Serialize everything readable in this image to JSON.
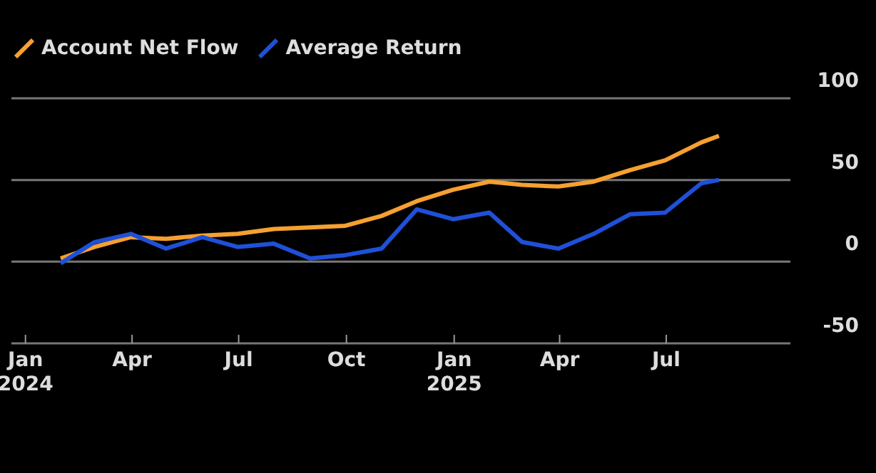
{
  "chart_data": {
    "type": "line",
    "x": [
      "2024-01-31",
      "2024-02-29",
      "2024-03-31",
      "2024-04-30",
      "2024-05-31",
      "2024-06-30",
      "2024-07-31",
      "2024-08-31",
      "2024-09-30",
      "2024-10-31",
      "2024-11-30",
      "2024-12-31",
      "2025-01-31",
      "2025-02-28",
      "2025-03-31",
      "2025-04-30",
      "2025-05-31",
      "2025-06-30",
      "2025-07-31",
      "2025-08-15"
    ],
    "series": [
      {
        "name": "Account Net Flow",
        "color": "#f5a030",
        "values": [
          2,
          9,
          15,
          14,
          16,
          17,
          20,
          21,
          22,
          28,
          37,
          44,
          49,
          47,
          46,
          49,
          56,
          62,
          73,
          77
        ]
      },
      {
        "name": "Average Return",
        "color": "#1f50d8",
        "values": [
          -1,
          12,
          17,
          8,
          15,
          9,
          11,
          2,
          4,
          8,
          32,
          26,
          30,
          12,
          8,
          17,
          29,
          30,
          48,
          50
        ]
      }
    ],
    "xlim": [
      "2023-12-20",
      "2025-10-15"
    ],
    "xticks": [
      {
        "value": "2024-01-01",
        "label": "Jan\n2024"
      },
      {
        "value": "2024-04-01",
        "label": "Apr"
      },
      {
        "value": "2024-07-01",
        "label": "Jul"
      },
      {
        "value": "2024-10-01",
        "label": "Oct"
      },
      {
        "value": "2025-01-01",
        "label": "Jan\n2025"
      },
      {
        "value": "2025-04-01",
        "label": "Apr"
      },
      {
        "value": "2025-07-01",
        "label": "Jul"
      }
    ],
    "ylim": [
      -50,
      100
    ],
    "yticks": [
      -50,
      0,
      50,
      100
    ],
    "grid": "y",
    "legend": "top left",
    "marker": "none",
    "line_style": "solid"
  }
}
